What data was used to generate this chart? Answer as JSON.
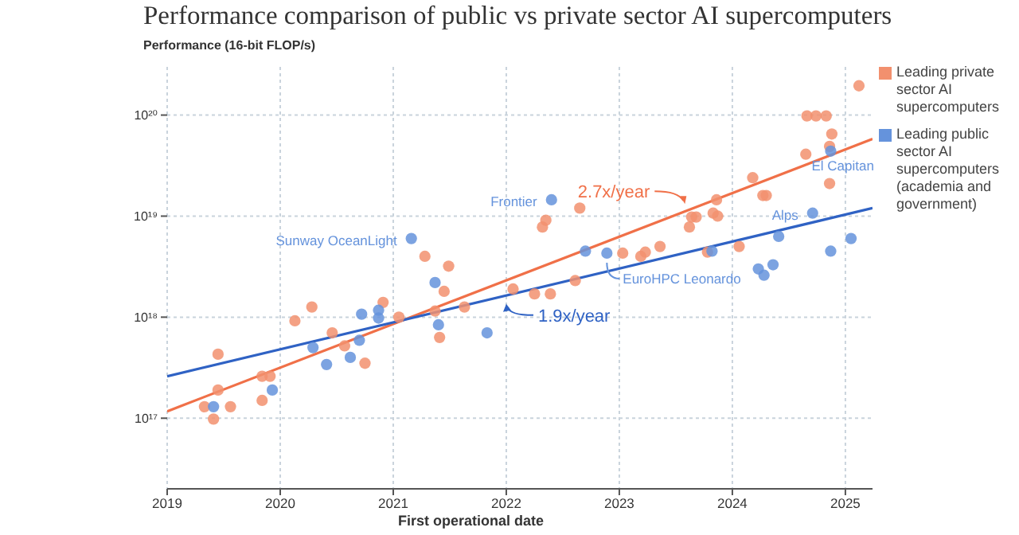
{
  "chart_data": {
    "type": "scatter",
    "title": "Performance comparison of public vs private sector AI supercomputers",
    "xlabel": "First operational date",
    "ylabel": "Performance (16-bit FLOP/s)",
    "xlim": [
      2019,
      2025.24
    ],
    "xticks": [
      2019,
      2020,
      2021,
      2022,
      2023,
      2024,
      2025
    ],
    "ylim": [
      2e+16,
      3e+20
    ],
    "yticks": [
      {
        "value": 1e+17,
        "label": "10¹⁷"
      },
      {
        "value": 1e+18,
        "label": "10¹⁸"
      },
      {
        "value": 1e+19,
        "label": "10¹⁹"
      },
      {
        "value": 1e+20,
        "label": "10²⁰"
      }
    ],
    "log": "y",
    "grid": true,
    "legend": "top right",
    "marker": "circle",
    "series": [
      {
        "name": "Leading private sector AI supercomputers",
        "color": "#f2906e",
        "x": [
          2019.33,
          2019.41,
          2019.45,
          2019.45,
          2019.56,
          2019.84,
          2019.84,
          2019.91,
          2020.13,
          2020.28,
          2020.46,
          2020.57,
          2020.75,
          2020.91,
          2021.05,
          2021.28,
          2021.37,
          2021.41,
          2021.45,
          2021.49,
          2021.63,
          2022.06,
          2022.25,
          2022.39,
          2022.32,
          2022.35,
          2022.65,
          2022.61,
          2023.03,
          2023.19,
          2023.23,
          2023.36,
          2023.62,
          2023.64,
          2023.68,
          2023.78,
          2023.83,
          2023.86,
          2023.87,
          2024.06,
          2024.18,
          2024.27,
          2024.3,
          2024.65,
          2024.66,
          2024.74,
          2024.83,
          2024.88,
          2024.86,
          2024.86,
          2025.12
        ],
        "values": [
          1.3e+17,
          9.8e+16,
          4.3e+17,
          1.9e+17,
          1.3e+17,
          2.6e+17,
          1.5e+17,
          2.6e+17,
          9.2e+17,
          1.26e+18,
          7e+17,
          5.2e+17,
          3.5e+17,
          1.4e+18,
          1e+18,
          4e+18,
          1.15e+18,
          6.3e+17,
          1.8e+18,
          3.2e+18,
          1.26e+18,
          1.9e+18,
          1.7e+18,
          1.7e+18,
          7.8e+18,
          9.1e+18,
          1.2e+19,
          2.3e+18,
          4.3e+18,
          4e+18,
          4.4e+18,
          5e+18,
          7.8e+18,
          9.8e+18,
          9.8e+18,
          4.4e+18,
          1.07e+19,
          1.45e+19,
          1e+19,
          5e+18,
          2.4e+19,
          1.6e+19,
          1.6e+19,
          4.1e+19,
          9.8e+19,
          9.8e+19,
          9.8e+19,
          6.5e+19,
          4.9e+19,
          2.1e+19,
          1.95e+20
        ]
      },
      {
        "name": "Leading public sector AI supercomputers (academia and government)",
        "color": "#6593dc",
        "x": [
          2019.41,
          2019.93,
          2020.29,
          2020.41,
          2020.62,
          2020.7,
          2020.72,
          2020.87,
          2020.87,
          2021.16,
          2021.37,
          2021.4,
          2021.83,
          2022.4,
          2022.7,
          2022.89,
          2023.82,
          2024.23,
          2024.28,
          2024.36,
          2024.41,
          2024.71,
          2024.87,
          2024.87,
          2025.05
        ],
        "values": [
          1.3e+17,
          1.9e+17,
          5e+17,
          3.4e+17,
          4e+17,
          5.9e+17,
          1.07e+18,
          1.17e+18,
          9.8e+17,
          6e+18,
          2.2e+18,
          8.4e+17,
          7e+17,
          1.45e+19,
          4.5e+18,
          4.3e+18,
          4.5e+18,
          3e+18,
          2.6e+18,
          3.3e+18,
          6.3e+18,
          1.07e+19,
          4.4e+19,
          4.5e+18,
          6e+18
        ]
      },
      {
        "type": "line",
        "marker": "none",
        "color": "#f07048",
        "x": [
          2019,
          2025.24
        ],
        "values": [
          1.17e+17,
          5.8e+19
        ]
      },
      {
        "type": "line",
        "marker": "none",
        "color": "#2f62c4",
        "x": [
          2019,
          2025.24
        ],
        "values": [
          2.6e+17,
          1.2e+19
        ]
      }
    ],
    "annotations": [
      {
        "text": "Sunway OceanLight",
        "x": 2021.16,
        "y": 6e+18
      },
      {
        "text": "Frontier",
        "x": 2022.4,
        "y": 1.45e+19
      },
      {
        "text": "EuroHPC Leonardo",
        "x": 2022.89,
        "y": 4.3e+18
      },
      {
        "text": "Alps",
        "x": 2024.71,
        "y": 1.07e+19
      },
      {
        "text": "El Capitan",
        "x": 2024.87,
        "y": 4.4e+19
      },
      {
        "text": "2.7x/year",
        "x": 2023.58,
        "y": 1.32e+19
      },
      {
        "text": "1.9x/year",
        "x": 2022.0,
        "y": 1.35e+18
      }
    ]
  }
}
